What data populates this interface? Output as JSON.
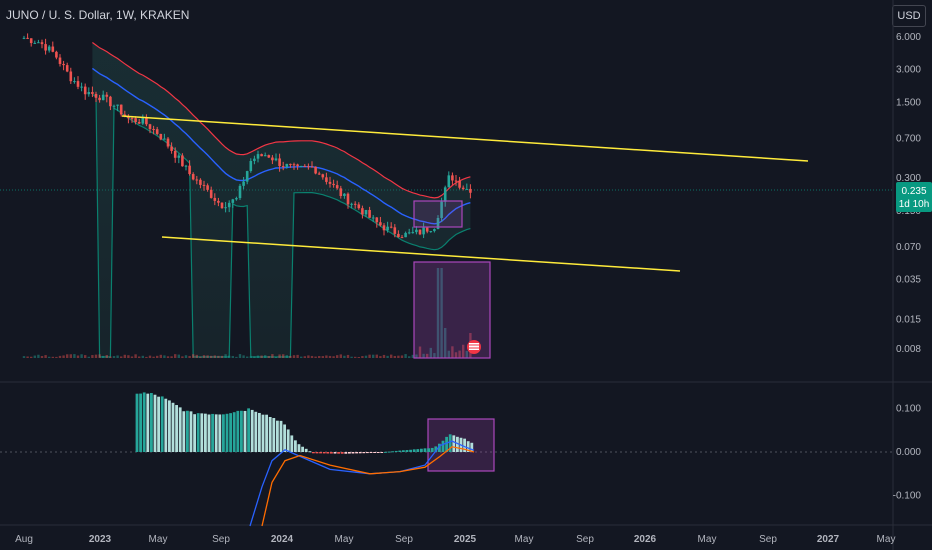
{
  "header": {
    "symbol_title": "JUNO / U. S. Dollar, 1W, KRAKEN",
    "currency_button": "USD"
  },
  "price_badge": {
    "value": "0.235",
    "countdown": "1d 10h",
    "color": "#089981"
  },
  "colors": {
    "background": "#131722",
    "up": "#26a69a",
    "down": "#ef5350",
    "trendline": "#ffeb3b",
    "box": "#ab47bc",
    "ma_blue": "#2962ff",
    "band_red": "#f23645",
    "band_green": "#089981",
    "macd_line": "#2962ff",
    "signal_line": "#ff6d00",
    "hist_up": "#b2dfdb",
    "hist_up_strong": "#26a69a",
    "hist_down": "#ffcdd2",
    "hist_down_strong": "#ef5350"
  },
  "chart_data": [
    {
      "type": "candlestick",
      "scale": "log",
      "price_ticks": [
        "6.000",
        "3.000",
        "1.500",
        "0.700",
        "0.300",
        "0.150",
        "0.070",
        "0.035",
        "0.015",
        "0.008"
      ],
      "time_ticks": [
        "Aug",
        "2023",
        "May",
        "Sep",
        "2024",
        "May",
        "Sep",
        "2025",
        "May",
        "Sep",
        "2026",
        "May",
        "Sep",
        "2027",
        "May"
      ],
      "last_price": 0.235,
      "series": [
        {
          "name": "candles",
          "close_points": [
            {
              "date": "2022-08",
              "value": 5.9
            },
            {
              "date": "2022-09",
              "value": 5.4
            },
            {
              "date": "2022-10",
              "value": 4.2
            },
            {
              "date": "2022-11",
              "value": 2.6
            },
            {
              "date": "2022-12",
              "value": 1.9
            },
            {
              "date": "2023-01",
              "value": 1.7
            },
            {
              "date": "2023-02",
              "value": 1.4
            },
            {
              "date": "2023-03",
              "value": 1.05
            },
            {
              "date": "2023-04",
              "value": 1.0
            },
            {
              "date": "2023-05",
              "value": 0.78
            },
            {
              "date": "2023-06",
              "value": 0.52
            },
            {
              "date": "2023-07",
              "value": 0.33
            },
            {
              "date": "2023-08",
              "value": 0.24
            },
            {
              "date": "2023-09",
              "value": 0.17
            },
            {
              "date": "2023-10",
              "value": 0.19
            },
            {
              "date": "2023-11",
              "value": 0.45
            },
            {
              "date": "2023-12",
              "value": 0.5
            },
            {
              "date": "2024-01",
              "value": 0.4
            },
            {
              "date": "2024-02",
              "value": 0.36
            },
            {
              "date": "2024-03",
              "value": 0.38
            },
            {
              "date": "2024-04",
              "value": 0.28
            },
            {
              "date": "2024-05",
              "value": 0.2
            },
            {
              "date": "2024-06",
              "value": 0.16
            },
            {
              "date": "2024-07",
              "value": 0.12
            },
            {
              "date": "2024-08",
              "value": 0.1
            },
            {
              "date": "2024-09",
              "value": 0.09
            },
            {
              "date": "2024-10",
              "value": 0.095
            },
            {
              "date": "2024-11",
              "value": 0.11
            },
            {
              "date": "2024-12",
              "value": 0.32
            },
            {
              "date": "2025-01",
              "value": 0.24
            },
            {
              "date": "2025-02",
              "value": 0.235
            }
          ]
        }
      ]
    },
    {
      "type": "histogram",
      "indicator": "MACD",
      "value_ticks": [
        "0.100",
        "0.000",
        "-0.100"
      ],
      "series": [
        {
          "name": "histogram",
          "points": [
            {
              "date": "2023-03",
              "value": 0.14
            },
            {
              "date": "2023-05",
              "value": 0.13
            },
            {
              "date": "2023-07",
              "value": 0.09
            },
            {
              "date": "2023-09",
              "value": 0.088
            },
            {
              "date": "2023-11",
              "value": 0.1
            },
            {
              "date": "2024-01",
              "value": 0.07
            },
            {
              "date": "2024-02",
              "value": 0.02
            },
            {
              "date": "2024-03",
              "value": -0.003
            },
            {
              "date": "2024-05",
              "value": -0.004
            },
            {
              "date": "2024-07",
              "value": -0.002
            },
            {
              "date": "2024-09",
              "value": 0.004
            },
            {
              "date": "2024-11",
              "value": 0.01
            },
            {
              "date": "2024-12",
              "value": 0.04
            },
            {
              "date": "2025-01",
              "value": 0.03
            },
            {
              "date": "2025-02",
              "value": 0.01
            }
          ]
        }
      ]
    }
  ]
}
